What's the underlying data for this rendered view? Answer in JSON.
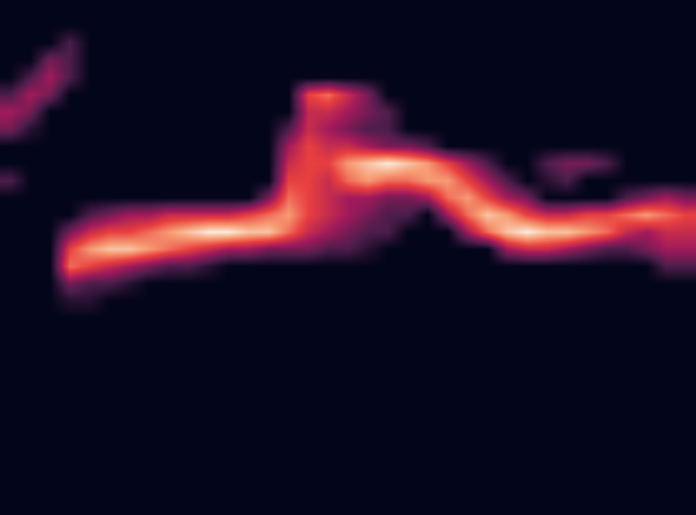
{
  "chart_data": {
    "type": "heatmap",
    "tick_labels": false,
    "zlim": [
      0,
      10
    ],
    "colors": [
      "#03051a",
      "#4c1d4b",
      "#a11a5b",
      "#e83f3f",
      "#f69c73",
      "#faebdd"
    ],
    "cells": [
      [
        0,
        0,
        0,
        0,
        0,
        0,
        0,
        0,
        0,
        0,
        0,
        0,
        0,
        0,
        0,
        0,
        0,
        0,
        0,
        0,
        0,
        0,
        0,
        0,
        0,
        0,
        0,
        0,
        0,
        0,
        0,
        0,
        0,
        0,
        0
      ],
      [
        0,
        0,
        0,
        0,
        0,
        0,
        0,
        0,
        0,
        0,
        0,
        0,
        0,
        0,
        0,
        0,
        0,
        0,
        0,
        0,
        0,
        0,
        0,
        0,
        0,
        0,
        0,
        0,
        0,
        0,
        0,
        0,
        0,
        0,
        0
      ],
      [
        0,
        0,
        0,
        2,
        0,
        0,
        0,
        0,
        0,
        0,
        0,
        0,
        0,
        0,
        0,
        0,
        0,
        0,
        0,
        0,
        0,
        0,
        0,
        0,
        0,
        0,
        0,
        0,
        0,
        0,
        0,
        0,
        0,
        0,
        0
      ],
      [
        0,
        0,
        3,
        2,
        0,
        0,
        0,
        0,
        0,
        0,
        0,
        0,
        0,
        0,
        0,
        0,
        0,
        0,
        0,
        0,
        0,
        0,
        0,
        0,
        0,
        0,
        0,
        0,
        0,
        0,
        0,
        0,
        0,
        0,
        0
      ],
      [
        0,
        2,
        4,
        2,
        0,
        0,
        0,
        0,
        0,
        0,
        0,
        0,
        0,
        0,
        0,
        0,
        0,
        0,
        0,
        0,
        0,
        0,
        0,
        0,
        0,
        0,
        0,
        0,
        0,
        0,
        0,
        0,
        0,
        0,
        0
      ],
      [
        2,
        4,
        3,
        0,
        0,
        0,
        0,
        0,
        0,
        0,
        0,
        0,
        0,
        0,
        0,
        6,
        7,
        5,
        3,
        0,
        0,
        0,
        0,
        0,
        0,
        0,
        0,
        0,
        0,
        0,
        0,
        0,
        0,
        0,
        0
      ],
      [
        4,
        3,
        0,
        0,
        0,
        0,
        0,
        0,
        0,
        0,
        0,
        0,
        0,
        0,
        0,
        5,
        5,
        4,
        3,
        2,
        0,
        0,
        0,
        0,
        0,
        0,
        0,
        0,
        0,
        0,
        0,
        0,
        0,
        0,
        0
      ],
      [
        3,
        1,
        0,
        0,
        0,
        0,
        0,
        0,
        0,
        0,
        0,
        0,
        0,
        0,
        2,
        5,
        4,
        3,
        2,
        2,
        0,
        0,
        0,
        0,
        0,
        0,
        0,
        0,
        0,
        0,
        0,
        0,
        0,
        0,
        0
      ],
      [
        0,
        0,
        0,
        0,
        0,
        0,
        0,
        0,
        0,
        0,
        0,
        0,
        0,
        0,
        4,
        6,
        5,
        5,
        4,
        3,
        3,
        2,
        0,
        0,
        0,
        0,
        0,
        0,
        0,
        0,
        0,
        0,
        0,
        0,
        0
      ],
      [
        0,
        0,
        0,
        0,
        0,
        0,
        0,
        0,
        0,
        0,
        0,
        0,
        0,
        0,
        5,
        6,
        6,
        8,
        9,
        10,
        9,
        8,
        6,
        4,
        2,
        0,
        0,
        2,
        3,
        3,
        2,
        0,
        0,
        0,
        0
      ],
      [
        2,
        0,
        0,
        0,
        0,
        0,
        0,
        0,
        0,
        0,
        0,
        0,
        0,
        0,
        6,
        6,
        5,
        7,
        8,
        7,
        7,
        8,
        8,
        6,
        4,
        2,
        0,
        1,
        2,
        0,
        0,
        0,
        0,
        0,
        0
      ],
      [
        0,
        0,
        0,
        0,
        0,
        0,
        0,
        0,
        0,
        0,
        0,
        0,
        0,
        3,
        7,
        6,
        5,
        4,
        4,
        3,
        3,
        4,
        7,
        8,
        6,
        4,
        3,
        0,
        0,
        0,
        0,
        2,
        3,
        4,
        3
      ],
      [
        0,
        0,
        0,
        0,
        2,
        3,
        4,
        4,
        5,
        5,
        5,
        5,
        6,
        7,
        8,
        6,
        5,
        4,
        3,
        2,
        2,
        0,
        4,
        7,
        9,
        8,
        6,
        5,
        5,
        6,
        6,
        7,
        8,
        7,
        6
      ],
      [
        0,
        0,
        0,
        3,
        5,
        6,
        6,
        7,
        8,
        9,
        10,
        10,
        9,
        9,
        7,
        5,
        4,
        3,
        2,
        2,
        0,
        0,
        0,
        4,
        7,
        9,
        10,
        9,
        9,
        8,
        7,
        5,
        4,
        5,
        5
      ],
      [
        0,
        0,
        0,
        6,
        8,
        9,
        9,
        8,
        7,
        6,
        5,
        4,
        4,
        3,
        3,
        3,
        2,
        2,
        1,
        0,
        0,
        0,
        0,
        0,
        0,
        4,
        5,
        5,
        4,
        3,
        2,
        2,
        3,
        4,
        4
      ],
      [
        0,
        0,
        0,
        7,
        6,
        5,
        4,
        3,
        2,
        2,
        1,
        0,
        0,
        0,
        0,
        0,
        0,
        0,
        0,
        0,
        0,
        0,
        0,
        0,
        0,
        0,
        0,
        0,
        0,
        0,
        0,
        0,
        0,
        2,
        2
      ],
      [
        0,
        0,
        0,
        3,
        2,
        2,
        1,
        0,
        0,
        0,
        0,
        0,
        0,
        0,
        0,
        0,
        0,
        0,
        0,
        0,
        0,
        0,
        0,
        0,
        0,
        0,
        0,
        0,
        0,
        0,
        0,
        0,
        0,
        0,
        0
      ],
      [
        0,
        0,
        0,
        1,
        1,
        0,
        0,
        0,
        0,
        0,
        0,
        0,
        0,
        0,
        0,
        0,
        0,
        0,
        0,
        0,
        0,
        0,
        0,
        0,
        0,
        0,
        0,
        0,
        0,
        0,
        0,
        0,
        0,
        0,
        0
      ],
      [
        0,
        0,
        0,
        0,
        0,
        0,
        0,
        0,
        0,
        0,
        0,
        0,
        0,
        0,
        0,
        0,
        0,
        0,
        0,
        0,
        0,
        0,
        0,
        0,
        0,
        0,
        0,
        0,
        0,
        0,
        0,
        0,
        0,
        0,
        0
      ],
      [
        0,
        0,
        0,
        0,
        0,
        0,
        0,
        0,
        0,
        0,
        0,
        0,
        0,
        0,
        0,
        0,
        0,
        0,
        0,
        0,
        0,
        0,
        0,
        0,
        0,
        0,
        0,
        0,
        0,
        0,
        0,
        0,
        0,
        0,
        0
      ],
      [
        0,
        0,
        0,
        0,
        0,
        0,
        0,
        0,
        0,
        0,
        0,
        0,
        0,
        0,
        0,
        0,
        0,
        0,
        0,
        0,
        0,
        0,
        0,
        0,
        0,
        0,
        0,
        0,
        0,
        0,
        0,
        0,
        0,
        0,
        0
      ],
      [
        0,
        0,
        0,
        0,
        0,
        0,
        0,
        0,
        0,
        0,
        0,
        0,
        0,
        0,
        0,
        0,
        0,
        0,
        0,
        0,
        0,
        0,
        0,
        0,
        0,
        0,
        0,
        0,
        0,
        0,
        0,
        0,
        0,
        0,
        0
      ],
      [
        0,
        0,
        0,
        0,
        0,
        0,
        0,
        0,
        0,
        0,
        0,
        0,
        0,
        0,
        0,
        0,
        0,
        0,
        0,
        0,
        0,
        0,
        0,
        0,
        0,
        0,
        0,
        0,
        0,
        0,
        0,
        0,
        0,
        0,
        0
      ],
      [
        0,
        0,
        0,
        0,
        0,
        0,
        0,
        0,
        0,
        0,
        0,
        0,
        0,
        0,
        0,
        0,
        0,
        0,
        0,
        0,
        0,
        0,
        0,
        0,
        0,
        0,
        0,
        0,
        0,
        0,
        0,
        0,
        0,
        0,
        0
      ],
      [
        0,
        0,
        0,
        0,
        0,
        0,
        0,
        0,
        0,
        0,
        0,
        0,
        0,
        0,
        0,
        0,
        0,
        0,
        0,
        0,
        0,
        0,
        0,
        0,
        0,
        0,
        0,
        0,
        0,
        0,
        0,
        0,
        0,
        0,
        0
      ],
      [
        0,
        0,
        0,
        0,
        0,
        0,
        0,
        0,
        0,
        0,
        0,
        0,
        0,
        0,
        0,
        0,
        0,
        0,
        0,
        0,
        0,
        0,
        0,
        0,
        0,
        0,
        0,
        0,
        0,
        0,
        0,
        0,
        0,
        0,
        0
      ],
      [
        0,
        0,
        0,
        0,
        0,
        0,
        0,
        0,
        0,
        0,
        0,
        0,
        0,
        0,
        0,
        0,
        0,
        0,
        0,
        0,
        0,
        0,
        0,
        0,
        0,
        0,
        0,
        0,
        0,
        0,
        0,
        0,
        0,
        0,
        0
      ],
      [
        0,
        0,
        0,
        0,
        0,
        0,
        0,
        0,
        0,
        0,
        0,
        0,
        0,
        0,
        0,
        0,
        0,
        0,
        0,
        0,
        0,
        0,
        0,
        0,
        0,
        0,
        0,
        0,
        0,
        0,
        0,
        0,
        0,
        0,
        0
      ],
      [
        0,
        0,
        0,
        0,
        0,
        0,
        0,
        0,
        0,
        0,
        0,
        0,
        0,
        0,
        0,
        0,
        0,
        0,
        0,
        0,
        0,
        0,
        0,
        0,
        0,
        0,
        0,
        0,
        0,
        0,
        0,
        0,
        0,
        0,
        0
      ],
      [
        0,
        0,
        0,
        0,
        0,
        0,
        0,
        0,
        0,
        0,
        0,
        0,
        0,
        0,
        0,
        0,
        0,
        0,
        0,
        0,
        0,
        0,
        0,
        0,
        0,
        0,
        0,
        0,
        0,
        0,
        0,
        0,
        0,
        0,
        0
      ]
    ]
  }
}
